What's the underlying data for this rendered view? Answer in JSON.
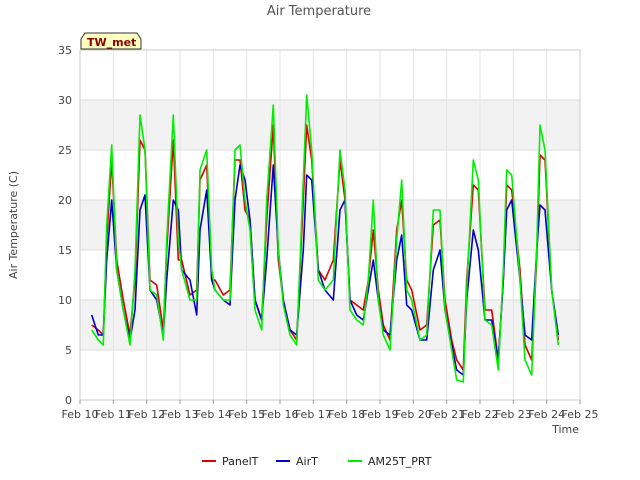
{
  "chart_data": {
    "type": "line",
    "title": "Air Temperature",
    "xlabel": "Time",
    "ylabel": "Air Temperature (C)",
    "station_label": "TW_met",
    "ylim": [
      0,
      35
    ],
    "yticks": [
      0,
      5,
      10,
      15,
      20,
      25,
      30,
      35
    ],
    "xlim": [
      10,
      25
    ],
    "xticks": [
      {
        "value": 10,
        "label": "Feb 10"
      },
      {
        "value": 11,
        "label": "Feb 11"
      },
      {
        "value": 12,
        "label": "Feb 12"
      },
      {
        "value": 13,
        "label": "Feb 13"
      },
      {
        "value": 14,
        "label": "Feb 14"
      },
      {
        "value": 15,
        "label": "Feb 15"
      },
      {
        "value": 16,
        "label": "Feb 16"
      },
      {
        "value": 17,
        "label": "Feb 17"
      },
      {
        "value": 18,
        "label": "Feb 18"
      },
      {
        "value": 19,
        "label": "Feb 19"
      },
      {
        "value": 20,
        "label": "Feb 20"
      },
      {
        "value": 21,
        "label": "Feb 21"
      },
      {
        "value": 22,
        "label": "Feb 22"
      },
      {
        "value": 23,
        "label": "Feb 23"
      },
      {
        "value": 24,
        "label": "Feb 24"
      },
      {
        "value": 25,
        "label": "Feb 25"
      }
    ],
    "grid": true,
    "legend_position": "bottom-center",
    "series": [
      {
        "name": "PanelT",
        "color": "#dd0000",
        "x": [
          10.35,
          10.55,
          10.7,
          10.8,
          10.95,
          11.1,
          11.3,
          11.5,
          11.65,
          11.8,
          11.95,
          12.1,
          12.3,
          12.5,
          12.6,
          12.8,
          12.95,
          13.05,
          13.3,
          13.5,
          13.6,
          13.8,
          13.95,
          14.05,
          14.3,
          14.5,
          14.65,
          14.8,
          14.95,
          15.1,
          15.25,
          15.45,
          15.6,
          15.8,
          15.95,
          16.1,
          16.3,
          16.5,
          16.7,
          16.8,
          16.95,
          17.15,
          17.35,
          17.6,
          17.8,
          17.95,
          18.1,
          18.3,
          18.5,
          18.65,
          18.8,
          18.95,
          19.1,
          19.3,
          19.5,
          19.65,
          19.8,
          19.95,
          20.2,
          20.4,
          20.6,
          20.8,
          20.95,
          21.15,
          21.3,
          21.5,
          21.6,
          21.8,
          21.95,
          22.15,
          22.35,
          22.55,
          22.7,
          22.8,
          22.95,
          23.2,
          23.35,
          23.55,
          23.7,
          23.8,
          23.95,
          24.15,
          24.35
        ],
        "y": [
          7.5,
          7,
          6.5,
          16,
          24,
          14,
          10,
          6.5,
          12,
          26,
          25,
          12,
          11.5,
          7,
          15,
          26,
          14,
          14,
          10.5,
          11,
          22,
          23.5,
          12,
          12,
          10.5,
          11,
          24,
          24,
          19,
          18,
          10,
          8,
          18,
          27.5,
          14,
          10,
          7,
          6,
          20,
          27.5,
          24,
          13,
          12,
          14,
          24,
          20,
          10,
          9.5,
          9,
          12,
          17,
          11,
          7.5,
          6,
          17,
          20,
          12,
          11,
          7,
          7.5,
          17.5,
          18,
          10,
          6,
          4,
          3,
          12,
          21.5,
          21,
          9,
          9,
          4,
          12,
          21.5,
          21,
          13,
          5.5,
          4,
          14,
          24.5,
          24,
          11,
          6
        ]
      },
      {
        "name": "AirT",
        "color": "#0000cc",
        "x": [
          10.35,
          10.55,
          10.7,
          10.8,
          10.95,
          11.1,
          11.3,
          11.5,
          11.65,
          11.8,
          11.95,
          12.1,
          12.3,
          12.5,
          12.6,
          12.8,
          12.95,
          13.05,
          13.3,
          13.5,
          13.6,
          13.8,
          13.95,
          14.05,
          14.3,
          14.5,
          14.65,
          14.8,
          14.95,
          15.1,
          15.25,
          15.45,
          15.6,
          15.8,
          15.95,
          16.1,
          16.3,
          16.5,
          16.7,
          16.8,
          16.95,
          17.15,
          17.35,
          17.6,
          17.8,
          17.95,
          18.1,
          18.3,
          18.5,
          18.65,
          18.8,
          18.95,
          19.1,
          19.3,
          19.5,
          19.65,
          19.8,
          19.95,
          20.2,
          20.4,
          20.6,
          20.8,
          20.95,
          21.15,
          21.3,
          21.5,
          21.6,
          21.8,
          21.95,
          22.15,
          22.35,
          22.55,
          22.7,
          22.8,
          22.95,
          23.2,
          23.35,
          23.55,
          23.7,
          23.8,
          23.95,
          24.15,
          24.35
        ],
        "y": [
          8.5,
          6.5,
          6.5,
          14,
          20,
          13,
          9,
          6,
          9,
          19,
          20.5,
          11,
          10,
          6.5,
          12,
          20,
          19,
          13,
          12,
          8.5,
          17,
          21,
          12,
          11,
          10,
          9.5,
          20,
          23.5,
          22,
          18,
          10,
          8,
          14,
          23.5,
          15,
          10,
          7,
          6.5,
          15,
          22.5,
          22,
          13,
          11,
          10,
          19,
          20,
          10,
          8.5,
          8,
          11,
          14,
          10,
          7,
          6.5,
          14,
          16.5,
          9.5,
          9,
          6,
          6,
          13,
          15,
          9,
          5.5,
          3,
          2.5,
          10,
          17,
          15,
          8,
          8,
          4,
          12,
          19,
          20,
          12,
          6.5,
          6,
          15,
          19.5,
          19,
          11,
          6.5
        ]
      },
      {
        "name": "AM25T_PRT",
        "color": "#00ee00",
        "x": [
          10.35,
          10.55,
          10.7,
          10.8,
          10.95,
          11.1,
          11.3,
          11.5,
          11.65,
          11.8,
          11.95,
          12.1,
          12.3,
          12.5,
          12.6,
          12.8,
          12.95,
          13.05,
          13.3,
          13.5,
          13.6,
          13.8,
          13.95,
          14.05,
          14.3,
          14.5,
          14.65,
          14.8,
          14.95,
          15.1,
          15.25,
          15.45,
          15.6,
          15.8,
          15.95,
          16.1,
          16.3,
          16.5,
          16.7,
          16.8,
          16.95,
          17.15,
          17.35,
          17.6,
          17.8,
          17.95,
          18.1,
          18.3,
          18.5,
          18.65,
          18.8,
          18.95,
          19.1,
          19.3,
          19.5,
          19.65,
          19.8,
          19.95,
          20.2,
          20.4,
          20.6,
          20.8,
          20.95,
          21.15,
          21.3,
          21.5,
          21.6,
          21.8,
          21.95,
          22.15,
          22.35,
          22.55,
          22.7,
          22.8,
          22.95,
          23.2,
          23.35,
          23.55,
          23.7,
          23.8,
          23.95,
          24.15,
          24.35
        ],
        "y": [
          7,
          6,
          5.5,
          17.5,
          25.5,
          13,
          9,
          5.5,
          13,
          28.5,
          25,
          11,
          10.5,
          6,
          16,
          28.5,
          16,
          13,
          10,
          10,
          23,
          25,
          13,
          11,
          10,
          10,
          25,
          25.5,
          20,
          17,
          9,
          7,
          20,
          29.5,
          15,
          9.5,
          6.5,
          5.5,
          22,
          30.5,
          25,
          12,
          11,
          12,
          25,
          21,
          9,
          8,
          7.5,
          12,
          20,
          10,
          6.5,
          5,
          16,
          22,
          11,
          10,
          6,
          6.5,
          19,
          19,
          9,
          5,
          2,
          1.8,
          11,
          24,
          22,
          8,
          7.5,
          3,
          13,
          23,
          22.5,
          12,
          4,
          2.5,
          15,
          27.5,
          25,
          11,
          5.5
        ]
      }
    ]
  }
}
